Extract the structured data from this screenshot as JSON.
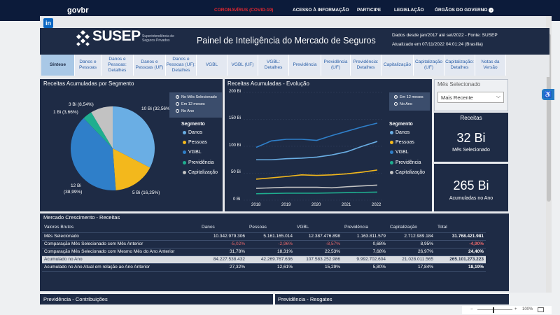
{
  "gov": {
    "logo": "govbr",
    "nav": [
      "CORONAVÍRUS (COVID-19)",
      "ACESSO À INFORMAÇÃO",
      "PARTICIPE",
      "LEGISLAÇÃO",
      "ÓRGÃOS DO GOVERNO"
    ],
    "chevron": "⌄"
  },
  "header": {
    "logo": "SUSEP",
    "logo_sub": "Superintendência de Seguros Privados",
    "title": "Painel de Inteligência do Mercado de Seguros",
    "info1": "Dados desde jan/2017 até set/2022 - Fonte: SUSEP",
    "info2": "Atualizado em 07/11/2022 04:01:24 (Brasília)"
  },
  "tabs": [
    "Síntese",
    "Danos e Pessoas",
    "Danos e Pessoas: Detalhes",
    "Danos e Pessoas (UF)",
    "Danos e Pessoas (UF): Detalhes",
    "VGBL",
    "VGBL (UF)",
    "VGBL: Detalhes",
    "Previdência",
    "Previdência (UF)",
    "Previdência: Detalhes",
    "Capitalização",
    "Capitalização (UF)",
    "Capitalização: Detalhes",
    "Notas da Versão"
  ],
  "pie_panel": {
    "title": "Receitas Acumuladas por Segmento",
    "radio": [
      "No Mês Selecionado",
      "Em 12 meses",
      "No Ano"
    ],
    "legend_title": "Segmento",
    "legend": [
      "Danos",
      "Pessoas",
      "VGBL",
      "Previdência",
      "Capitalização"
    ],
    "labels": {
      "danos": "10 Bi (32,56%)",
      "pessoas": "5 Bi (16,25%)",
      "vgbl_a": "12 Bi",
      "vgbl_b": "(38,99%)",
      "previdencia": "1 Bi (3,66%)",
      "capitalizacao": "3 Bi (8,54%)"
    }
  },
  "line_panel": {
    "title": "Receitas Acumuladas - Evolução",
    "radio": [
      "Em 12 meses",
      "No Ano"
    ],
    "legend_title": "Segmento",
    "legend": [
      "Danos",
      "Pessoas",
      "VGBL",
      "Previdência",
      "Capitalização"
    ],
    "y_ticks": [
      "200 Bi",
      "150 Bi",
      "100 Bi",
      "50 Bi",
      "0 Bi"
    ],
    "x_ticks": [
      "2018",
      "2019",
      "2020",
      "2021",
      "2022"
    ]
  },
  "filter": {
    "title": "Mês Selecionado",
    "value": "Mais Recente",
    "chevron": "⌵"
  },
  "kpi1": {
    "title": "Receitas",
    "value": "32 Bi",
    "sub": "Mês Selecionado"
  },
  "kpi2": {
    "value": "265 Bi",
    "sub": "Acumuladas no Ano"
  },
  "table": {
    "title": "Mercado Crescimento - Receitas",
    "headers": [
      "Valores Brutos",
      "Danos",
      "Pessoas",
      "VGBL",
      "Previdência",
      "Capitalização",
      "Total"
    ],
    "rows": [
      [
        "Mês Selecionado",
        "10.342.979.306",
        "5.161.165.014",
        "12.387.476.898",
        "1.163.811.579",
        "2.712.989.184",
        "31.768.421.981"
      ],
      [
        "Comparação Mês Selecionado com Mês Anterior",
        "-5,02%",
        "-2,96%",
        "-8,57%",
        "0,68%",
        "8,95%",
        "-4,90%"
      ],
      [
        "Comparação Mês Selecionado com Mesmo Mês do Ano Anterior",
        "31,78%",
        "18,31%",
        "22,53%",
        "7,68%",
        "26,97%",
        "24,40%"
      ],
      [
        "Acumulado no Ano",
        "84.227.538.432",
        "42.269.767.636",
        "107.583.252.986",
        "9.992.702.604",
        "21.028.011.565",
        "265.101.273.223"
      ],
      [
        "Acumulado no Ano Atual em relação ao Ano Anterior",
        "27,32%",
        "12,61%",
        "15,29%",
        "5,80%",
        "17,84%",
        "18,19%"
      ]
    ]
  },
  "bottom": {
    "left": "Previdência - Contribuições",
    "right": "Previdência - Resgates"
  },
  "zoom": {
    "value": "100%"
  },
  "colors": {
    "danos": "#6aaee4",
    "pessoas": "#f3b81c",
    "vgbl": "#2f7fc9",
    "previdencia": "#1fae8f",
    "capitalizacao": "#c2c2c2"
  },
  "chart_data": [
    {
      "type": "pie",
      "title": "Receitas Acumuladas por Segmento",
      "categories": [
        "Danos",
        "Pessoas",
        "VGBL",
        "Previdência",
        "Capitalização"
      ],
      "values": [
        32.56,
        16.25,
        38.99,
        3.66,
        8.54
      ],
      "labels": [
        "10 Bi (32,56%)",
        "5 Bi (16,25%)",
        "12 Bi (38,99%)",
        "1 Bi (3,66%)",
        "3 Bi (8,54%)"
      ]
    },
    {
      "type": "line",
      "title": "Receitas Acumuladas - Evolução",
      "x": [
        2018,
        2019,
        2020,
        2021,
        2022
      ],
      "ylim": [
        0,
        200
      ],
      "ylabel": "Bi",
      "series": [
        {
          "name": "VGBL",
          "x": [
            2018,
            2018.5,
            2019,
            2019.5,
            2020,
            2020.5,
            2021,
            2021.5,
            2022
          ],
          "values": [
            98,
            110,
            113,
            113,
            111,
            120,
            128,
            136,
            143
          ]
        },
        {
          "name": "Danos",
          "x": [
            2018,
            2018.5,
            2019,
            2019.5,
            2020,
            2020.5,
            2021,
            2021.5,
            2022
          ],
          "values": [
            75,
            75,
            77,
            78,
            80,
            84,
            90,
            100,
            109
          ]
        },
        {
          "name": "Pessoas",
          "x": [
            2018,
            2019,
            2019.5,
            2020,
            2020.5,
            2021,
            2021.5,
            2022
          ],
          "values": [
            39,
            44,
            47,
            46,
            47,
            49,
            52,
            56
          ]
        },
        {
          "name": "Capitalização",
          "x": [
            2018,
            2019,
            2020,
            2020.5,
            2021,
            2022
          ],
          "values": [
            22,
            24,
            24,
            23,
            25,
            28
          ]
        },
        {
          "name": "Previdência",
          "x": [
            2018,
            2019,
            2020,
            2021,
            2022
          ],
          "values": [
            12,
            13,
            13,
            14,
            15
          ]
        }
      ]
    }
  ]
}
